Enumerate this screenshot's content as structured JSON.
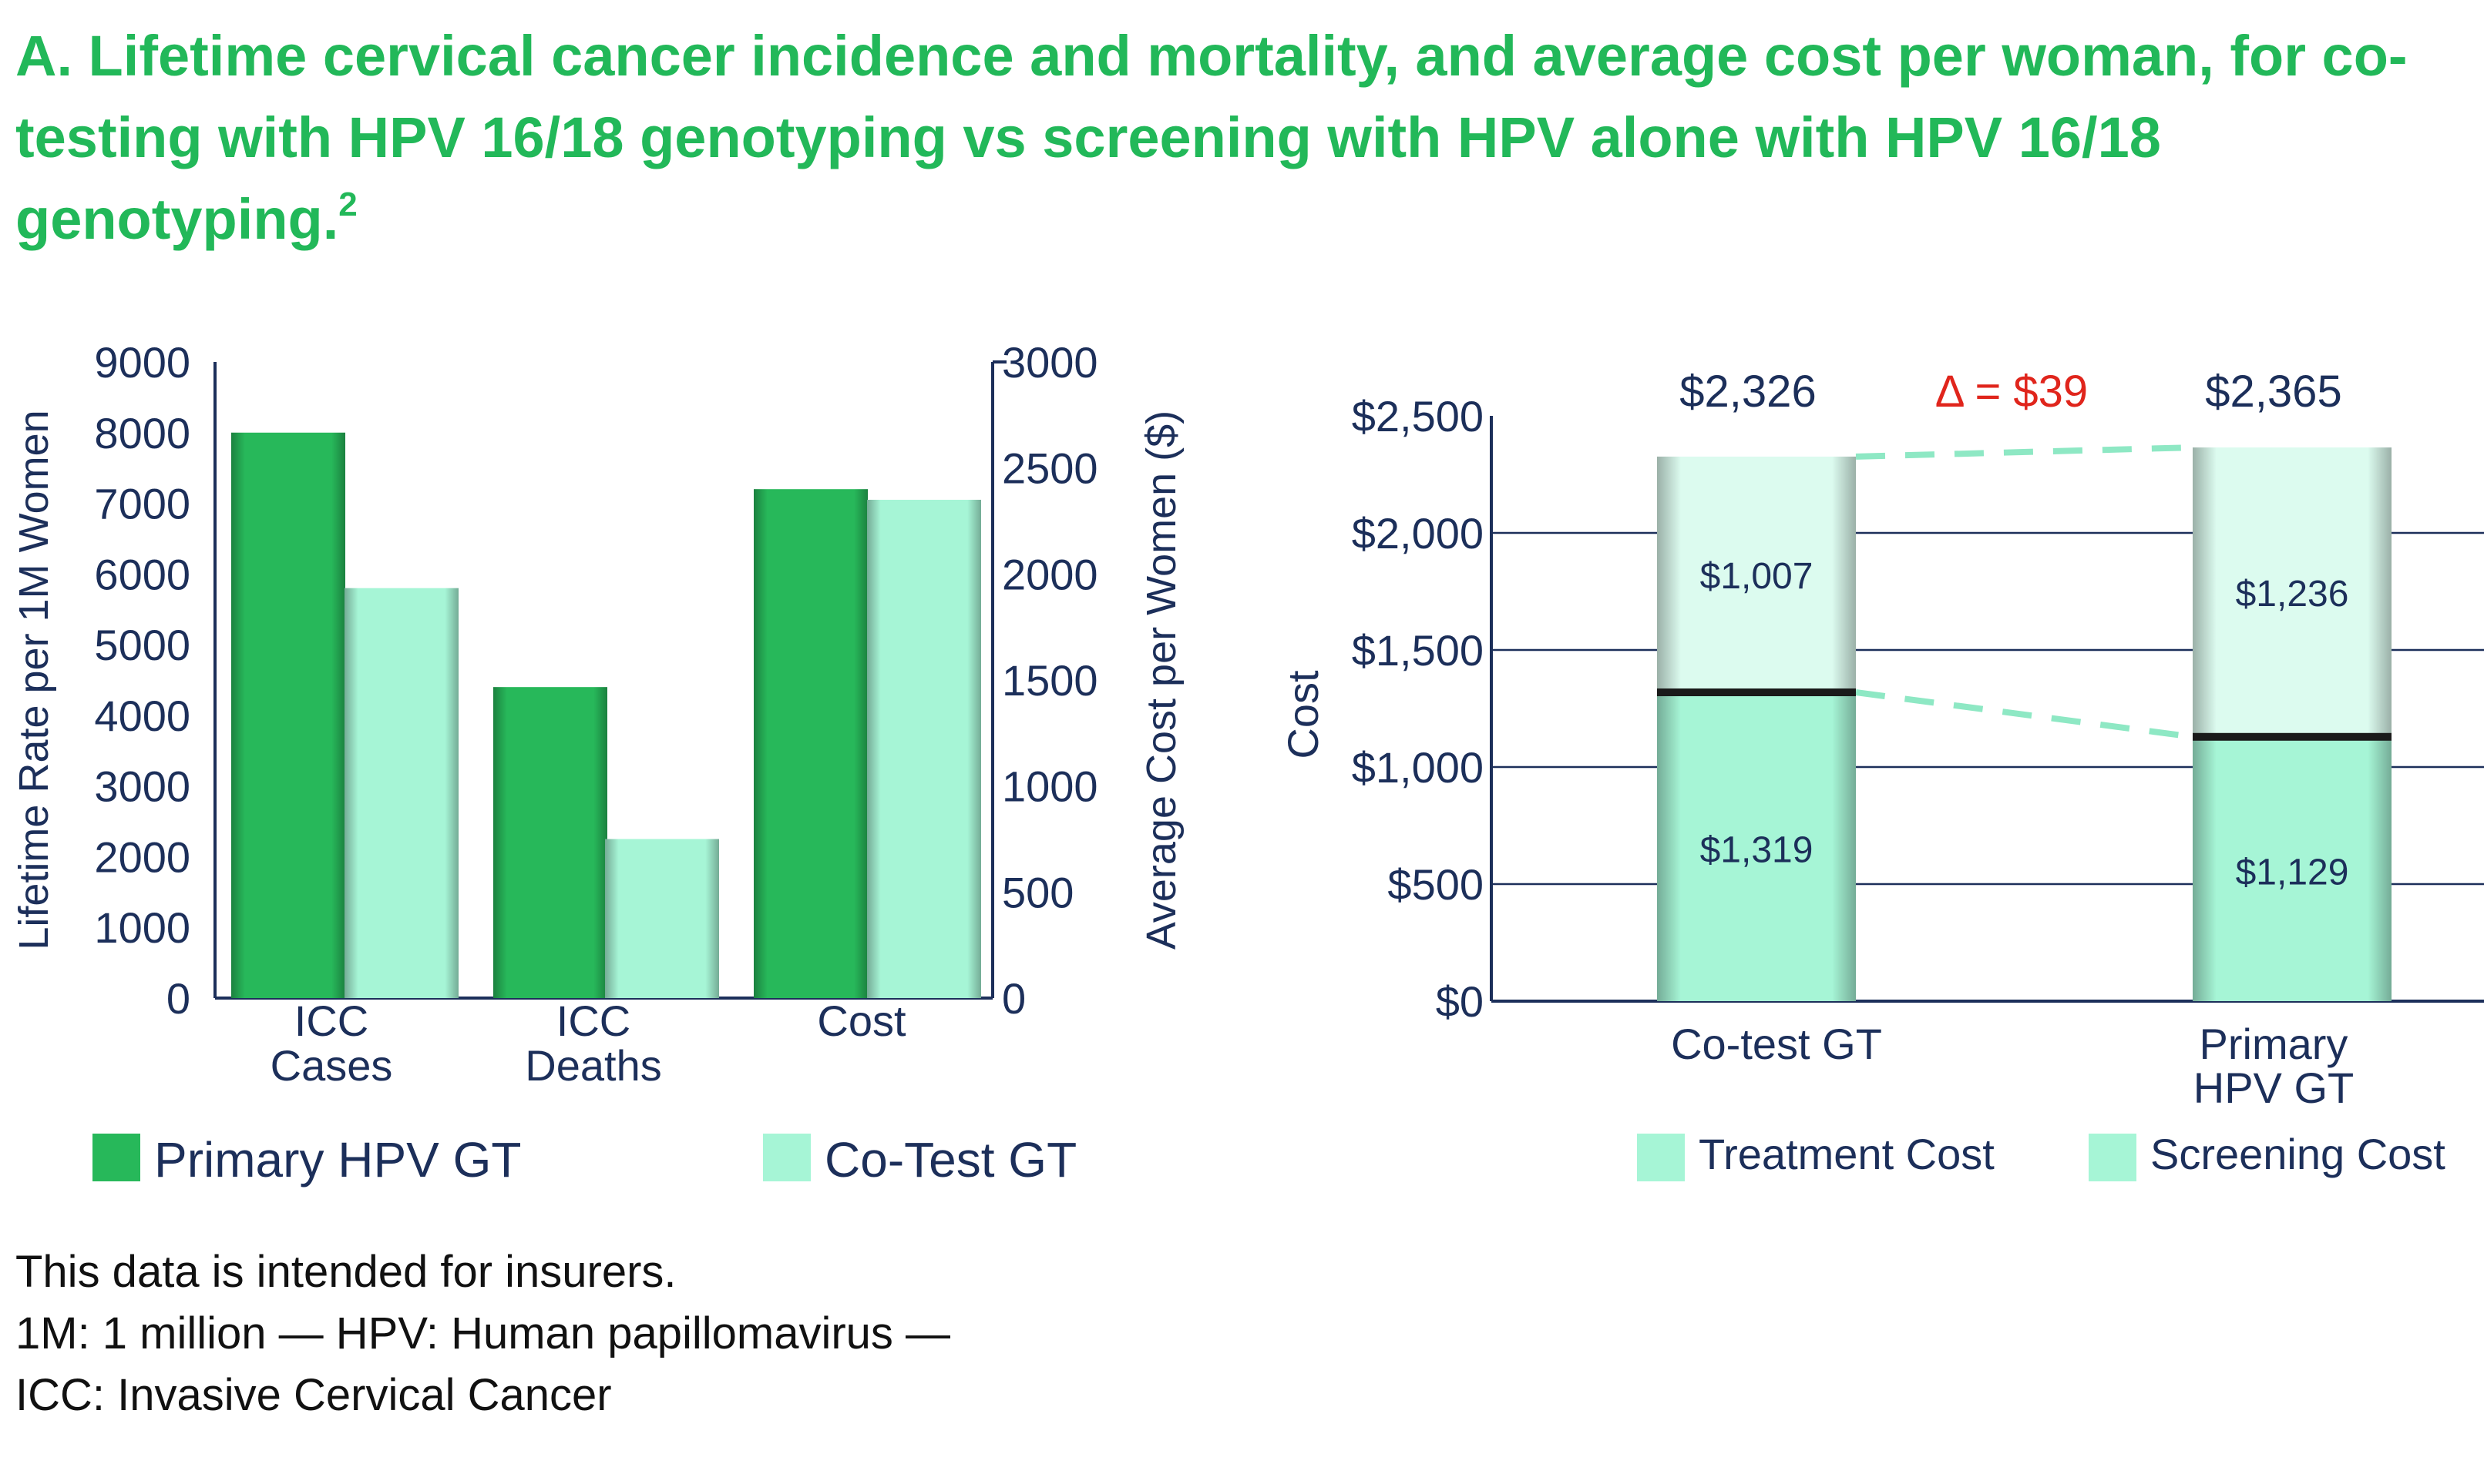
{
  "title": {
    "text": "A. Lifetime cervical cancer incidence and mortality, and average cost per woman, for co-testing with HPV 16/18 genotyping vs screening with HPV alone with HPV 16/18 genotyping.",
    "ref": "2"
  },
  "colors": {
    "title": "#22b859",
    "navy": "#1c2f5a",
    "primary_hpv_gt": "#27b85a",
    "co_test_gt": "#a6f5d6",
    "treatment_cost": "#a6f5d6",
    "screening_cost": "#dcfbef",
    "delta": "#e0251c",
    "connector": "#8ee8c4"
  },
  "chart_data": [
    {
      "type": "bar",
      "categories": [
        "ICC\nCases",
        "ICC\nDeaths",
        "Cost"
      ],
      "series": [
        {
          "name": "Primary HPV GT",
          "values": [
            8000,
            4400,
            2400
          ],
          "axis": [
            "left",
            "left",
            "right"
          ]
        },
        {
          "name": "Co-Test GT",
          "values": [
            5800,
            2250,
            2350
          ],
          "axis": [
            "left",
            "left",
            "right"
          ]
        }
      ],
      "ylabel": "Lifetime Rate per 1M Women",
      "ylim": [
        0,
        9000
      ],
      "yticks": [
        "0",
        "1000",
        "2000",
        "3000",
        "4000",
        "5000",
        "6000",
        "7000",
        "8000",
        "9000"
      ],
      "y2label": "Average Cost per Women ($)",
      "y2lim": [
        0,
        3000
      ],
      "y2ticks": [
        "0",
        "500",
        "1000",
        "1500",
        "2000",
        "2500",
        "3000"
      ],
      "legend_position": "bottom",
      "grid": false
    },
    {
      "type": "bar",
      "stacked": true,
      "categories": [
        "Co-test GT",
        "Primary\nHPV GT"
      ],
      "series": [
        {
          "name": "Treatment Cost",
          "values": [
            1319,
            1129
          ],
          "labels": [
            "$1,319",
            "$1,129"
          ]
        },
        {
          "name": "Screening Cost",
          "values": [
            1007,
            1236
          ],
          "labels": [
            "$1,007",
            "$1,236"
          ]
        }
      ],
      "totals": [
        2326,
        2365
      ],
      "total_labels": [
        "$2,326",
        "$2,365"
      ],
      "annotation": "Δ = $39",
      "ylabel": "Cost",
      "ylim": [
        0,
        2500
      ],
      "yticks": [
        "$0",
        "$500",
        "$1,000",
        "$1,500",
        "$2,000",
        "$2,500"
      ],
      "grid": true,
      "legend_position": "bottom"
    }
  ],
  "notes": [
    "This data is intended for insurers.",
    "1M: 1 million — HPV: Human papillomavirus —",
    "ICC: Invasive Cervical Cancer"
  ]
}
